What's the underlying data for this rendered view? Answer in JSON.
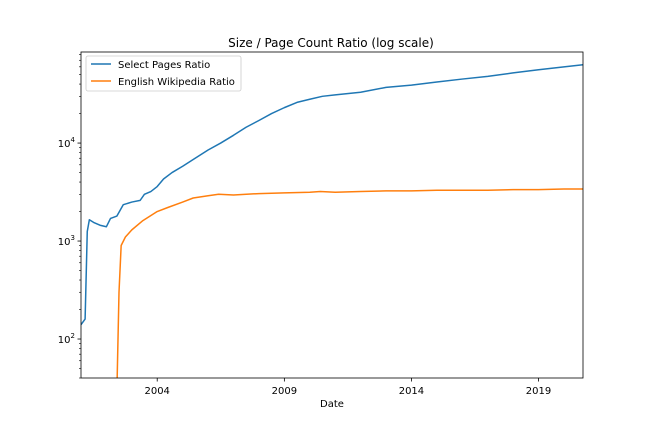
{
  "chart_data": {
    "type": "line",
    "title": "Size / Page Count Ratio (log scale)",
    "xlabel": "Date",
    "ylabel": "",
    "y_scale": "log",
    "xlim": [
      "2001-01-01",
      "2020-10-01"
    ],
    "ylim": [
      40,
      85000
    ],
    "grid": false,
    "legend_position": "top-left",
    "x_tick_labels": [
      "2004",
      "2009",
      "2014",
      "2019"
    ],
    "x_ticks": [
      "2004-01-01",
      "2009-01-01",
      "2014-01-01",
      "2019-01-01"
    ],
    "y_ticks": [
      {
        "value": 100,
        "base": "10",
        "exp": "2"
      },
      {
        "value": 1000,
        "base": "10",
        "exp": "3"
      },
      {
        "value": 10000,
        "base": "10",
        "exp": "4"
      }
    ],
    "series": [
      {
        "name": "Select Pages Ratio",
        "color": "#1f77b4",
        "points": [
          [
            "2001-01-01",
            140
          ],
          [
            "2001-03-01",
            160
          ],
          [
            "2001-04-01",
            1250
          ],
          [
            "2001-05-01",
            1650
          ],
          [
            "2001-07-01",
            1550
          ],
          [
            "2001-10-01",
            1450
          ],
          [
            "2002-01-01",
            1400
          ],
          [
            "2002-03-01",
            1700
          ],
          [
            "2002-06-01",
            1800
          ],
          [
            "2002-09-01",
            2350
          ],
          [
            "2003-01-01",
            2500
          ],
          [
            "2003-05-01",
            2600
          ],
          [
            "2003-07-01",
            3000
          ],
          [
            "2003-10-01",
            3200
          ],
          [
            "2004-01-01",
            3600
          ],
          [
            "2004-04-01",
            4300
          ],
          [
            "2004-08-01",
            5000
          ],
          [
            "2005-01-01",
            5800
          ],
          [
            "2005-06-01",
            6800
          ],
          [
            "2006-01-01",
            8500
          ],
          [
            "2006-07-01",
            10000
          ],
          [
            "2007-01-01",
            12000
          ],
          [
            "2007-07-01",
            14500
          ],
          [
            "2008-01-01",
            17000
          ],
          [
            "2008-07-01",
            20000
          ],
          [
            "2009-01-01",
            23000
          ],
          [
            "2009-07-01",
            26000
          ],
          [
            "2010-01-01",
            28000
          ],
          [
            "2010-07-01",
            30000
          ],
          [
            "2011-01-01",
            31000
          ],
          [
            "2012-01-01",
            33000
          ],
          [
            "2013-01-01",
            37000
          ],
          [
            "2014-01-01",
            39000
          ],
          [
            "2015-01-01",
            42000
          ],
          [
            "2016-01-01",
            45000
          ],
          [
            "2017-01-01",
            48000
          ],
          [
            "2018-01-01",
            52000
          ],
          [
            "2019-01-01",
            56000
          ],
          [
            "2020-01-01",
            60000
          ],
          [
            "2020-10-01",
            63000
          ]
        ]
      },
      {
        "name": "English Wikipedia Ratio",
        "color": "#ff7f0e",
        "points": [
          [
            "2002-06-01",
            30
          ],
          [
            "2002-07-01",
            300
          ],
          [
            "2002-08-01",
            900
          ],
          [
            "2002-10-01",
            1100
          ],
          [
            "2003-01-01",
            1300
          ],
          [
            "2003-06-01",
            1600
          ],
          [
            "2004-01-01",
            2000
          ],
          [
            "2004-06-01",
            2200
          ],
          [
            "2005-01-01",
            2500
          ],
          [
            "2005-06-01",
            2750
          ],
          [
            "2006-01-01",
            2900
          ],
          [
            "2006-06-01",
            3000
          ],
          [
            "2007-01-01",
            2950
          ],
          [
            "2008-01-01",
            3050
          ],
          [
            "2009-01-01",
            3100
          ],
          [
            "2010-01-01",
            3150
          ],
          [
            "2010-06-01",
            3200
          ],
          [
            "2011-01-01",
            3150
          ],
          [
            "2012-01-01",
            3200
          ],
          [
            "2013-01-01",
            3250
          ],
          [
            "2014-01-01",
            3250
          ],
          [
            "2015-01-01",
            3300
          ],
          [
            "2016-01-01",
            3300
          ],
          [
            "2017-01-01",
            3300
          ],
          [
            "2018-01-01",
            3350
          ],
          [
            "2019-01-01",
            3350
          ],
          [
            "2020-01-01",
            3400
          ],
          [
            "2020-10-01",
            3400
          ]
        ]
      }
    ]
  }
}
